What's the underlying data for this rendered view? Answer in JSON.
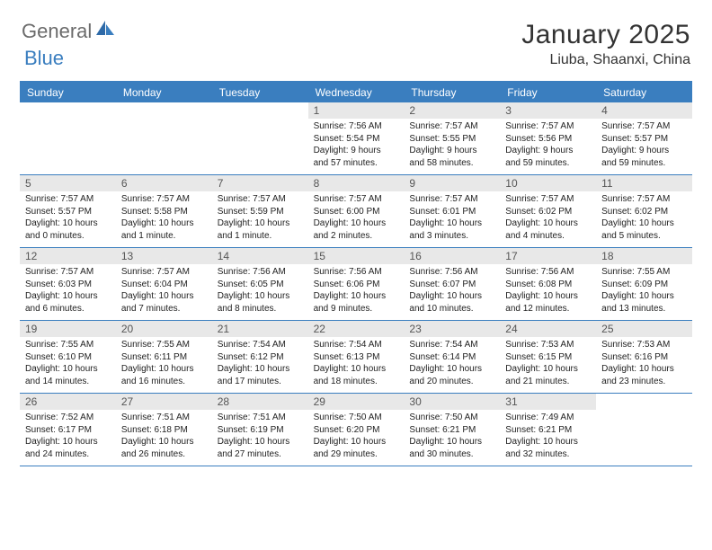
{
  "logo": {
    "text1": "General",
    "text2": "Blue"
  },
  "title": "January 2025",
  "location": "Liuba, Shaanxi, China",
  "header_color": "#3a7ebf",
  "daynum_bg": "#e8e8e8",
  "weekdays": [
    "Sunday",
    "Monday",
    "Tuesday",
    "Wednesday",
    "Thursday",
    "Friday",
    "Saturday"
  ],
  "weeks": [
    [
      {
        "n": "",
        "sunrise": "",
        "sunset": "",
        "daylight1": "",
        "daylight2": ""
      },
      {
        "n": "",
        "sunrise": "",
        "sunset": "",
        "daylight1": "",
        "daylight2": ""
      },
      {
        "n": "",
        "sunrise": "",
        "sunset": "",
        "daylight1": "",
        "daylight2": ""
      },
      {
        "n": "1",
        "sunrise": "Sunrise: 7:56 AM",
        "sunset": "Sunset: 5:54 PM",
        "daylight1": "Daylight: 9 hours",
        "daylight2": "and 57 minutes."
      },
      {
        "n": "2",
        "sunrise": "Sunrise: 7:57 AM",
        "sunset": "Sunset: 5:55 PM",
        "daylight1": "Daylight: 9 hours",
        "daylight2": "and 58 minutes."
      },
      {
        "n": "3",
        "sunrise": "Sunrise: 7:57 AM",
        "sunset": "Sunset: 5:56 PM",
        "daylight1": "Daylight: 9 hours",
        "daylight2": "and 59 minutes."
      },
      {
        "n": "4",
        "sunrise": "Sunrise: 7:57 AM",
        "sunset": "Sunset: 5:57 PM",
        "daylight1": "Daylight: 9 hours",
        "daylight2": "and 59 minutes."
      }
    ],
    [
      {
        "n": "5",
        "sunrise": "Sunrise: 7:57 AM",
        "sunset": "Sunset: 5:57 PM",
        "daylight1": "Daylight: 10 hours",
        "daylight2": "and 0 minutes."
      },
      {
        "n": "6",
        "sunrise": "Sunrise: 7:57 AM",
        "sunset": "Sunset: 5:58 PM",
        "daylight1": "Daylight: 10 hours",
        "daylight2": "and 1 minute."
      },
      {
        "n": "7",
        "sunrise": "Sunrise: 7:57 AM",
        "sunset": "Sunset: 5:59 PM",
        "daylight1": "Daylight: 10 hours",
        "daylight2": "and 1 minute."
      },
      {
        "n": "8",
        "sunrise": "Sunrise: 7:57 AM",
        "sunset": "Sunset: 6:00 PM",
        "daylight1": "Daylight: 10 hours",
        "daylight2": "and 2 minutes."
      },
      {
        "n": "9",
        "sunrise": "Sunrise: 7:57 AM",
        "sunset": "Sunset: 6:01 PM",
        "daylight1": "Daylight: 10 hours",
        "daylight2": "and 3 minutes."
      },
      {
        "n": "10",
        "sunrise": "Sunrise: 7:57 AM",
        "sunset": "Sunset: 6:02 PM",
        "daylight1": "Daylight: 10 hours",
        "daylight2": "and 4 minutes."
      },
      {
        "n": "11",
        "sunrise": "Sunrise: 7:57 AM",
        "sunset": "Sunset: 6:02 PM",
        "daylight1": "Daylight: 10 hours",
        "daylight2": "and 5 minutes."
      }
    ],
    [
      {
        "n": "12",
        "sunrise": "Sunrise: 7:57 AM",
        "sunset": "Sunset: 6:03 PM",
        "daylight1": "Daylight: 10 hours",
        "daylight2": "and 6 minutes."
      },
      {
        "n": "13",
        "sunrise": "Sunrise: 7:57 AM",
        "sunset": "Sunset: 6:04 PM",
        "daylight1": "Daylight: 10 hours",
        "daylight2": "and 7 minutes."
      },
      {
        "n": "14",
        "sunrise": "Sunrise: 7:56 AM",
        "sunset": "Sunset: 6:05 PM",
        "daylight1": "Daylight: 10 hours",
        "daylight2": "and 8 minutes."
      },
      {
        "n": "15",
        "sunrise": "Sunrise: 7:56 AM",
        "sunset": "Sunset: 6:06 PM",
        "daylight1": "Daylight: 10 hours",
        "daylight2": "and 9 minutes."
      },
      {
        "n": "16",
        "sunrise": "Sunrise: 7:56 AM",
        "sunset": "Sunset: 6:07 PM",
        "daylight1": "Daylight: 10 hours",
        "daylight2": "and 10 minutes."
      },
      {
        "n": "17",
        "sunrise": "Sunrise: 7:56 AM",
        "sunset": "Sunset: 6:08 PM",
        "daylight1": "Daylight: 10 hours",
        "daylight2": "and 12 minutes."
      },
      {
        "n": "18",
        "sunrise": "Sunrise: 7:55 AM",
        "sunset": "Sunset: 6:09 PM",
        "daylight1": "Daylight: 10 hours",
        "daylight2": "and 13 minutes."
      }
    ],
    [
      {
        "n": "19",
        "sunrise": "Sunrise: 7:55 AM",
        "sunset": "Sunset: 6:10 PM",
        "daylight1": "Daylight: 10 hours",
        "daylight2": "and 14 minutes."
      },
      {
        "n": "20",
        "sunrise": "Sunrise: 7:55 AM",
        "sunset": "Sunset: 6:11 PM",
        "daylight1": "Daylight: 10 hours",
        "daylight2": "and 16 minutes."
      },
      {
        "n": "21",
        "sunrise": "Sunrise: 7:54 AM",
        "sunset": "Sunset: 6:12 PM",
        "daylight1": "Daylight: 10 hours",
        "daylight2": "and 17 minutes."
      },
      {
        "n": "22",
        "sunrise": "Sunrise: 7:54 AM",
        "sunset": "Sunset: 6:13 PM",
        "daylight1": "Daylight: 10 hours",
        "daylight2": "and 18 minutes."
      },
      {
        "n": "23",
        "sunrise": "Sunrise: 7:54 AM",
        "sunset": "Sunset: 6:14 PM",
        "daylight1": "Daylight: 10 hours",
        "daylight2": "and 20 minutes."
      },
      {
        "n": "24",
        "sunrise": "Sunrise: 7:53 AM",
        "sunset": "Sunset: 6:15 PM",
        "daylight1": "Daylight: 10 hours",
        "daylight2": "and 21 minutes."
      },
      {
        "n": "25",
        "sunrise": "Sunrise: 7:53 AM",
        "sunset": "Sunset: 6:16 PM",
        "daylight1": "Daylight: 10 hours",
        "daylight2": "and 23 minutes."
      }
    ],
    [
      {
        "n": "26",
        "sunrise": "Sunrise: 7:52 AM",
        "sunset": "Sunset: 6:17 PM",
        "daylight1": "Daylight: 10 hours",
        "daylight2": "and 24 minutes."
      },
      {
        "n": "27",
        "sunrise": "Sunrise: 7:51 AM",
        "sunset": "Sunset: 6:18 PM",
        "daylight1": "Daylight: 10 hours",
        "daylight2": "and 26 minutes."
      },
      {
        "n": "28",
        "sunrise": "Sunrise: 7:51 AM",
        "sunset": "Sunset: 6:19 PM",
        "daylight1": "Daylight: 10 hours",
        "daylight2": "and 27 minutes."
      },
      {
        "n": "29",
        "sunrise": "Sunrise: 7:50 AM",
        "sunset": "Sunset: 6:20 PM",
        "daylight1": "Daylight: 10 hours",
        "daylight2": "and 29 minutes."
      },
      {
        "n": "30",
        "sunrise": "Sunrise: 7:50 AM",
        "sunset": "Sunset: 6:21 PM",
        "daylight1": "Daylight: 10 hours",
        "daylight2": "and 30 minutes."
      },
      {
        "n": "31",
        "sunrise": "Sunrise: 7:49 AM",
        "sunset": "Sunset: 6:21 PM",
        "daylight1": "Daylight: 10 hours",
        "daylight2": "and 32 minutes."
      },
      {
        "n": "",
        "sunrise": "",
        "sunset": "",
        "daylight1": "",
        "daylight2": ""
      }
    ]
  ]
}
